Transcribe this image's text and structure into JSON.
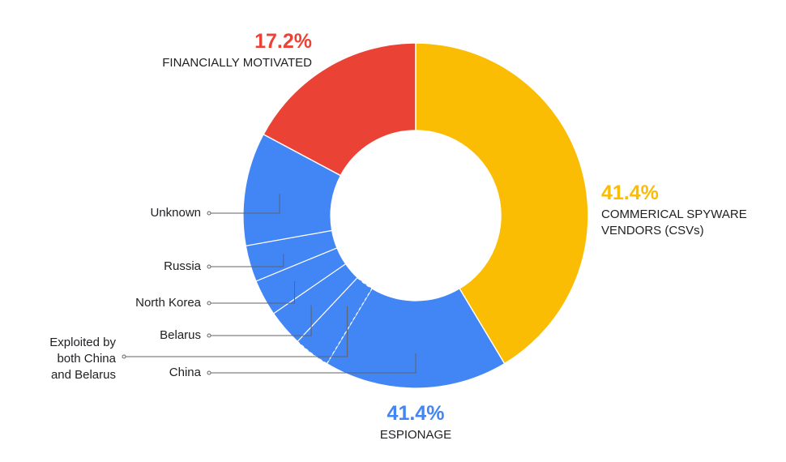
{
  "chart_data": {
    "type": "donut",
    "series": [
      {
        "name": "COMMERICAL SPYWARE VENDORS (CSVs)",
        "value": 41.4,
        "value_label": "41.4%",
        "color": "#fbbc04"
      },
      {
        "name": "ESPIONAGE",
        "value": 41.4,
        "value_label": "41.4%",
        "color": "#4285f4",
        "parts": [
          {
            "name": "China",
            "value": 17.2
          },
          {
            "name": "Exploited by both China and Belarus",
            "value": 3.4
          },
          {
            "name": "Belarus",
            "value": 3.4
          },
          {
            "name": "North Korea",
            "value": 3.4
          },
          {
            "name": "Russia",
            "value": 3.4
          },
          {
            "name": "Unknown",
            "value": 10.6
          }
        ]
      },
      {
        "name": "FINANCIALLY MOTIVATED",
        "value": 17.2,
        "value_label": "17.2%",
        "color": "#ea4335"
      }
    ]
  }
}
